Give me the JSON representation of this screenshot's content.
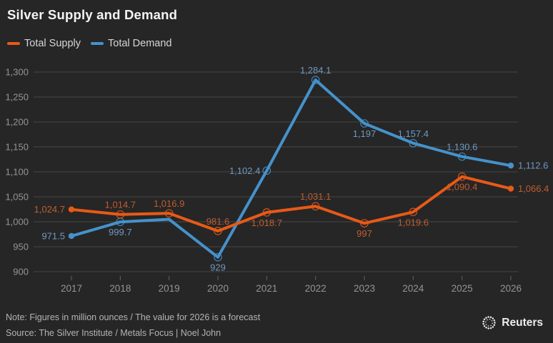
{
  "colors": {
    "background": "#262626",
    "gridline": "#474747",
    "axis_text": "#949494",
    "title_text": "#f4f4f4",
    "legend_text": "#d6d6d6",
    "note_text": "#b4b4b4",
    "supply_line": "#e85a17",
    "supply_label": "#c05c2e",
    "demand_line": "#4592cb",
    "demand_label": "#6f98bf"
  },
  "chart_data": {
    "type": "line",
    "title": "Silver Supply and Demand",
    "categories": [
      "2017",
      "2018",
      "2019",
      "2020",
      "2021",
      "2022",
      "2023",
      "2024",
      "2025",
      "2026"
    ],
    "series": [
      {
        "name": "Total Supply",
        "color": "#e85a17",
        "label_color": "#c05c2e",
        "values": [
          1024.7,
          1014.7,
          1016.9,
          981.6,
          1018.7,
          1031.1,
          997,
          1019.6,
          1090.4,
          1066.4
        ],
        "labels": [
          "1,024.7",
          "1,014.7",
          "1,016.9",
          "981.6",
          "1,018.7",
          "1,031.1",
          "997",
          "1,019.6",
          "1,090.4",
          "1,066.4"
        ],
        "label_placement": [
          "left",
          "above",
          "above",
          "above",
          "below",
          "above",
          "below",
          "below",
          "below",
          "right"
        ],
        "ring_points": [
          1,
          2,
          3,
          4,
          5,
          6,
          7,
          8
        ]
      },
      {
        "name": "Total Demand",
        "color": "#4592cb",
        "label_color": "#6f98bf",
        "values": [
          971.5,
          999.7,
          1005,
          929,
          1102.4,
          1284.1,
          1197,
          1157.4,
          1130.6,
          1112.6
        ],
        "labels": [
          "971.5",
          "999.7",
          null,
          "929",
          "1,102.4",
          "1,284.1",
          "1,197",
          "1,157.4",
          "1,130.6",
          "1,112.6"
        ],
        "label_placement": [
          "left",
          "below",
          null,
          "below",
          "left",
          "above",
          "below",
          "above",
          "above",
          "right"
        ],
        "ring_points": [
          1,
          3,
          4,
          5,
          6,
          7,
          8
        ]
      }
    ],
    "xlabel": "",
    "ylabel": "",
    "ylim": [
      900,
      1300
    ],
    "ytick_step": 50,
    "ytick_labels": [
      "900",
      "950",
      "1,000",
      "1,050",
      "1,100",
      "1,150",
      "1,200",
      "1,250",
      "1,300"
    ],
    "grid": "horizontal",
    "legend_position": "top-left"
  },
  "footer": {
    "note": "Note: Figures in million ounces / The value for 2026 is a forecast",
    "source": "Source: The Silver Institute / Metals Focus | Noel John",
    "brand": "Reuters"
  }
}
